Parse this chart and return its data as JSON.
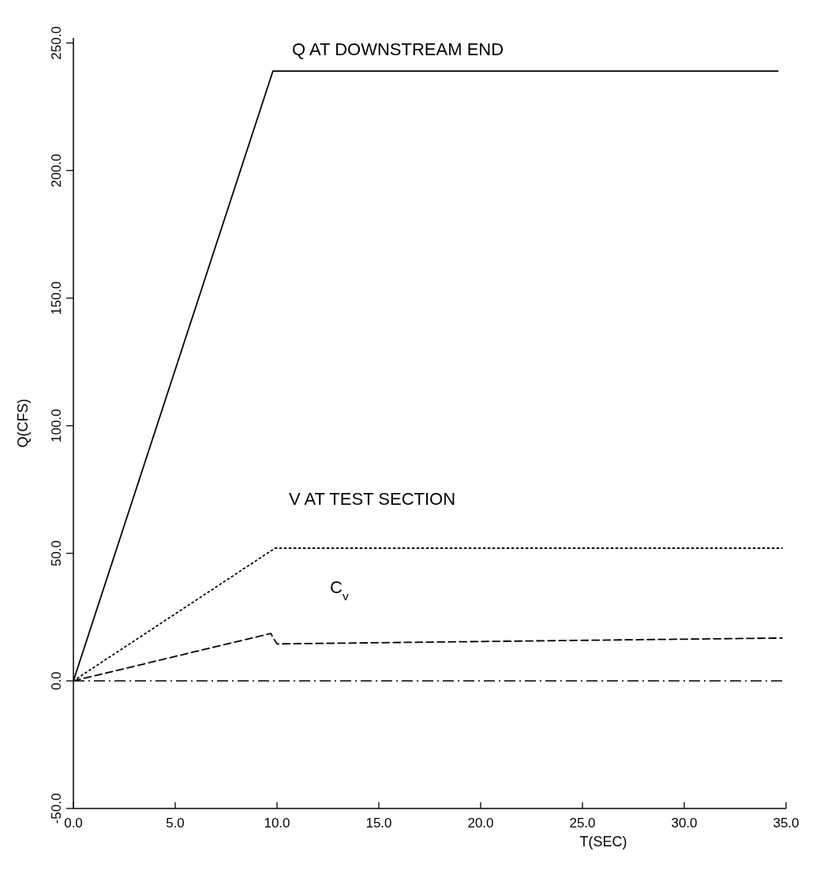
{
  "chart_data": {
    "type": "line",
    "xlabel": "T(SEC)",
    "ylabel": "Q(CFS)",
    "xlim": [
      0,
      35
    ],
    "ylim": [
      -50,
      252
    ],
    "xticks": [
      {
        "value": 0,
        "label": "0.0"
      },
      {
        "value": 5,
        "label": "5.0"
      },
      {
        "value": 10,
        "label": "10.0"
      },
      {
        "value": 15,
        "label": "15.0"
      },
      {
        "value": 20,
        "label": "20.0"
      },
      {
        "value": 25,
        "label": "25.0"
      },
      {
        "value": 30,
        "label": "30.0"
      },
      {
        "value": 35,
        "label": "35.0"
      }
    ],
    "yticks": [
      {
        "value": -50,
        "label": "-50.0"
      },
      {
        "value": 0,
        "label": "0.0"
      },
      {
        "value": 50,
        "label": "50.0"
      },
      {
        "value": 100,
        "label": "100.0"
      },
      {
        "value": 150,
        "label": "150.0"
      },
      {
        "value": 200,
        "label": "200.0"
      },
      {
        "value": 250,
        "label": "250.0"
      }
    ],
    "grid": false,
    "marker": "none",
    "series": [
      {
        "color": "#000000",
        "line_style": "solid",
        "x": [
          0,
          9.8,
          34.6
        ],
        "values": [
          0,
          239,
          239
        ]
      },
      {
        "color": "#000000",
        "line_style": "dotted",
        "x": [
          0,
          9.9,
          34.8
        ],
        "values": [
          0,
          52,
          52
        ]
      },
      {
        "color": "#000000",
        "line_style": "dashed",
        "x": [
          0,
          9.7,
          9.8,
          10.0,
          34.8
        ],
        "values": [
          0,
          18.6,
          17,
          14.5,
          16.8
        ]
      }
    ],
    "ref_lines": [
      {
        "axis": "y",
        "value": 0,
        "color": "#000000",
        "line_style": "dashdot"
      }
    ],
    "annotations": [
      "Q AT DOWNSTREAM END",
      "V AT TEST SECTION",
      "C$_{v}$"
    ]
  }
}
